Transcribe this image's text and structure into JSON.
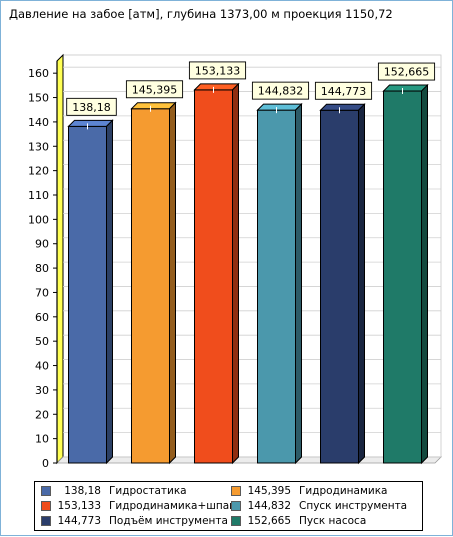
{
  "chart_data": {
    "type": "bar",
    "title": "Давление на забое [атм], глубина 1373,00 м проекция 1150,72",
    "xlabel": "",
    "ylabel": "",
    "ylim": [
      0,
      165
    ],
    "yticks": [
      "0",
      "10",
      "20",
      "30",
      "40",
      "50",
      "60",
      "70",
      "80",
      "90",
      "100",
      "110",
      "120",
      "130",
      "140",
      "150",
      "160"
    ],
    "grid": true,
    "legend_position": "bottom",
    "categories": [
      "Гидростатика",
      "Гидродинамика",
      "Гидродинамика+шпам",
      "Спуск инструмента",
      "Подъём инструмента",
      "Пуск насоса"
    ],
    "value_labels": [
      "138,18",
      "145,395",
      "153,133",
      "144,832",
      "144,773",
      "152,665"
    ],
    "values": [
      138.18,
      145.395,
      153.133,
      144.832,
      144.773,
      152.665
    ],
    "colors": [
      "#4a6aa8",
      "#f59b30",
      "#f04d1c",
      "#4b98ac",
      "#2a3d6b",
      "#1f7a68"
    ]
  }
}
